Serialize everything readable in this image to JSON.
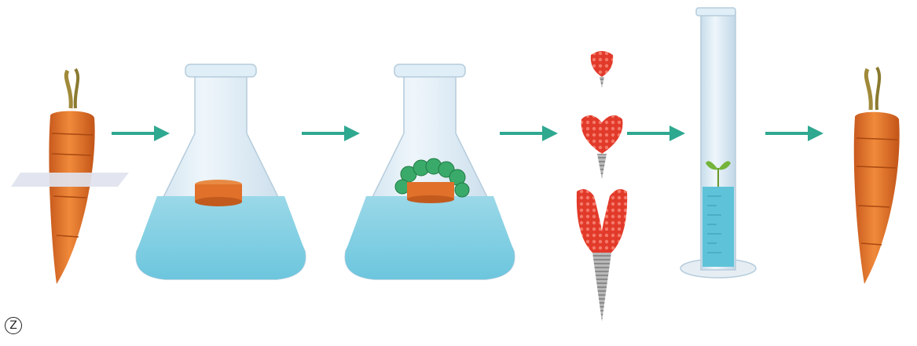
{
  "figure": {
    "panel_label": "Z",
    "stages": [
      "carrot-with-slice",
      "flask-with-carrot-disc",
      "flask-with-callus",
      "developing-embryos",
      "seedling-in-cylinder",
      "mature-carrot"
    ],
    "colors": {
      "carrot": "#e0702a",
      "carrot_dark": "#b8501a",
      "carrot_top": "#a08a3a",
      "medium": "#7fd0e4",
      "glass": "#d4e6f2",
      "callus": "#3aaa6a",
      "embryo": "#e23a2a",
      "arrow": "#2fa890",
      "leaf": "#74b43a"
    }
  }
}
